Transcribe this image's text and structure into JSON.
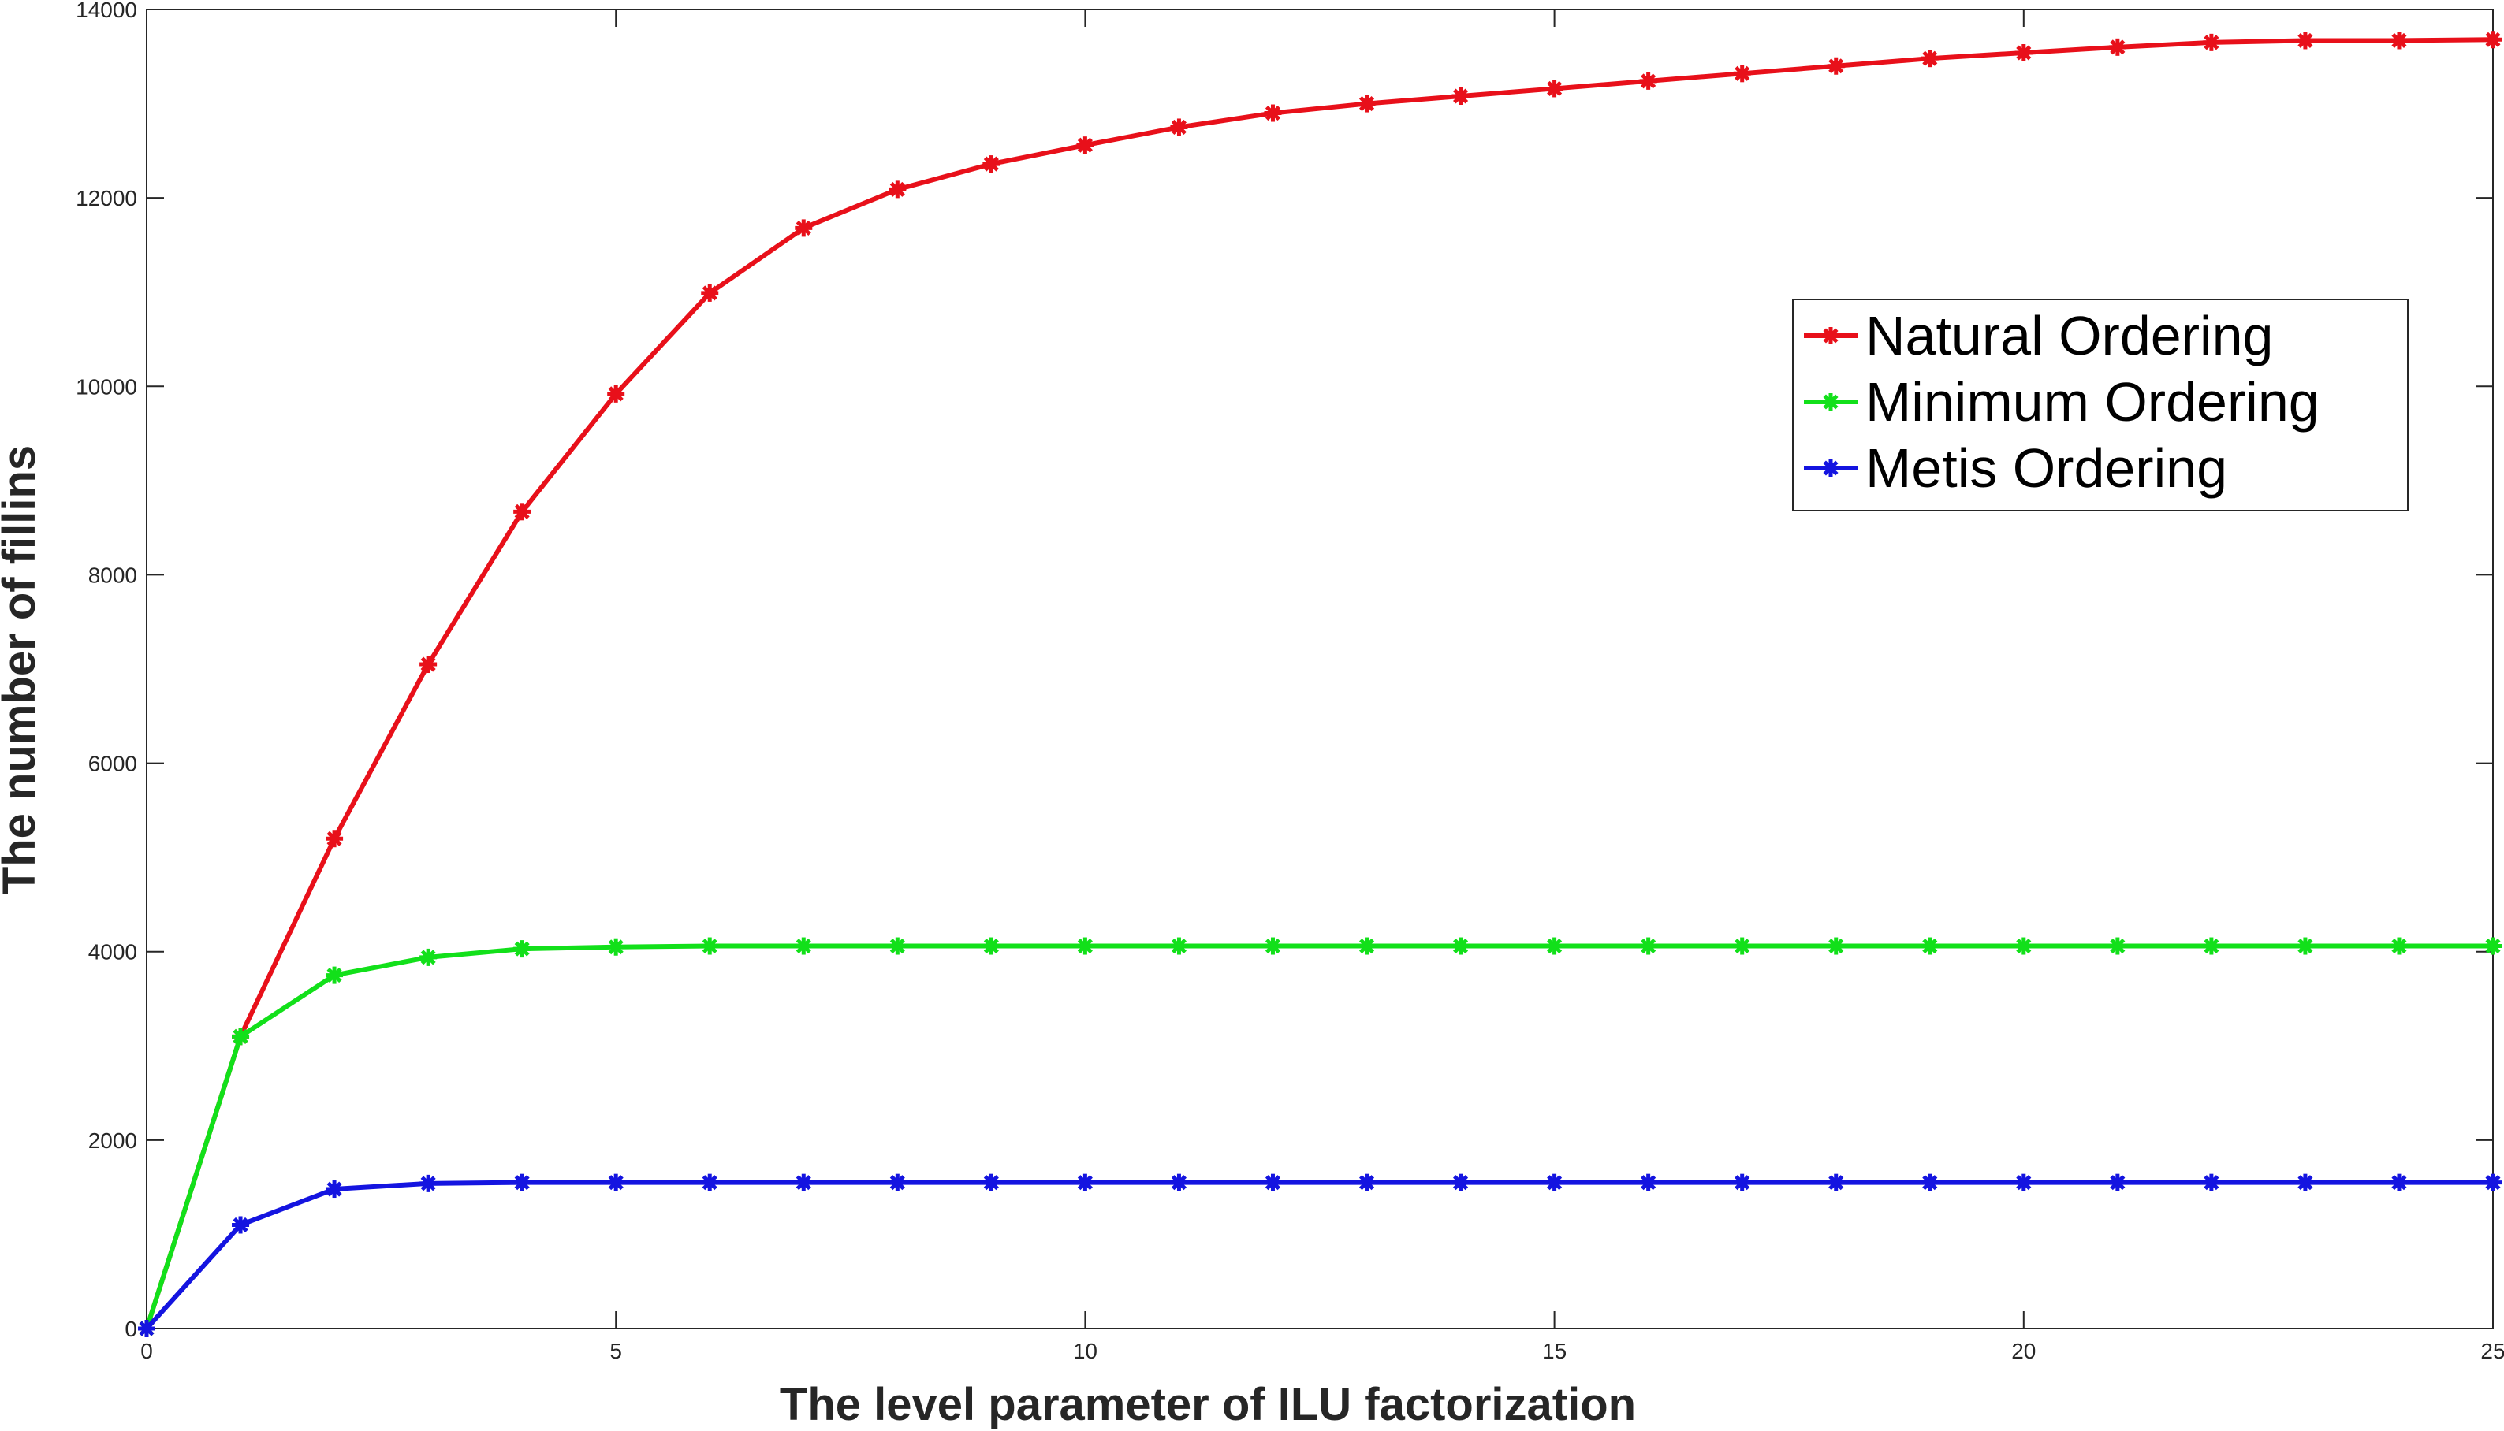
{
  "chart_data": {
    "type": "line",
    "title": "",
    "xlabel": "The level parameter of ILU factorization",
    "ylabel": "The number of fillins",
    "xlim": [
      0,
      25
    ],
    "ylim": [
      0,
      14000
    ],
    "grid": false,
    "legend_position": "right",
    "x_ticks": [
      0,
      5,
      10,
      15,
      20,
      25
    ],
    "y_ticks": [
      0,
      2000,
      4000,
      6000,
      8000,
      10000,
      12000,
      14000
    ],
    "x": [
      0,
      1,
      2,
      3,
      4,
      5,
      6,
      7,
      8,
      9,
      10,
      11,
      12,
      13,
      14,
      15,
      16,
      17,
      18,
      19,
      20,
      21,
      22,
      23,
      24,
      25
    ],
    "series": [
      {
        "name": "Natural Ordering",
        "color": "#e8101a",
        "marker": "asterisk",
        "values": [
          0,
          3100,
          5200,
          7050,
          8670,
          9920,
          10990,
          11680,
          12090,
          12360,
          12560,
          12750,
          12900,
          13000,
          13080,
          13160,
          13240,
          13320,
          13400,
          13480,
          13540,
          13600,
          13650,
          13670,
          13670,
          13680
        ]
      },
      {
        "name": "Minimum Ordering",
        "color": "#12e01a",
        "marker": "asterisk",
        "values": [
          0,
          3100,
          3750,
          3940,
          4030,
          4050,
          4060,
          4060,
          4060,
          4060,
          4060,
          4060,
          4060,
          4060,
          4060,
          4060,
          4060,
          4060,
          4060,
          4060,
          4060,
          4060,
          4060,
          4060,
          4060,
          4060
        ]
      },
      {
        "name": "Metis Ordering",
        "color": "#1414e0",
        "marker": "asterisk",
        "values": [
          0,
          1100,
          1480,
          1540,
          1550,
          1550,
          1550,
          1550,
          1550,
          1550,
          1550,
          1550,
          1550,
          1550,
          1550,
          1550,
          1550,
          1550,
          1550,
          1550,
          1550,
          1550,
          1550,
          1550,
          1550,
          1550
        ]
      }
    ]
  }
}
